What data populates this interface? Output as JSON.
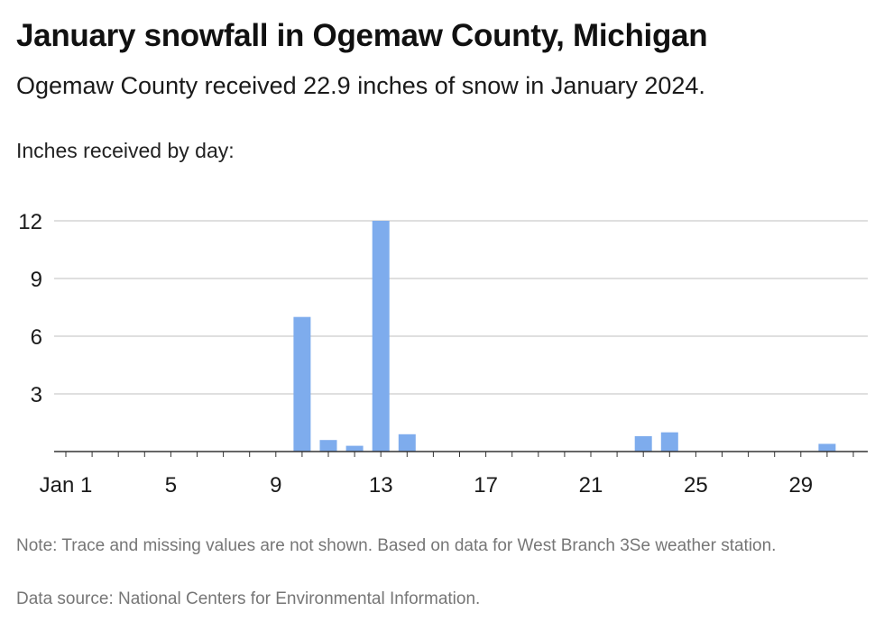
{
  "header": {
    "title": "January snowfall in Ogemaw County, Michigan",
    "subtitle": "Ogemaw County received 22.9 inches of snow in January 2024."
  },
  "footer": {
    "note": "Note: Trace and missing values are not shown. Based on data for West Branch 3Se weather station.",
    "source": "Data source: National Centers for Environmental Information."
  },
  "colors": {
    "bar": "#7eaced",
    "grid": "#bfbfbf",
    "axis": "#333333",
    "tick_text": "#1a1a1a"
  },
  "chart_data": {
    "type": "bar",
    "title": "January snowfall in Ogemaw County, Michigan",
    "subtitle": "Ogemaw County received 22.9 inches of snow in January 2024.",
    "ylabel": "Inches received by day:",
    "xlabel": "",
    "ylim": [
      0,
      12
    ],
    "yticks": [
      3,
      6,
      9,
      12
    ],
    "x_range": [
      1,
      31
    ],
    "xticks": [
      {
        "day": 1,
        "label": "Jan 1"
      },
      {
        "day": 5,
        "label": "5"
      },
      {
        "day": 9,
        "label": "9"
      },
      {
        "day": 13,
        "label": "13"
      },
      {
        "day": 17,
        "label": "17"
      },
      {
        "day": 21,
        "label": "21"
      },
      {
        "day": 25,
        "label": "25"
      },
      {
        "day": 29,
        "label": "29"
      }
    ],
    "grid": true,
    "legend": "none",
    "bars": [
      {
        "day": 10,
        "value": 7.0
      },
      {
        "day": 11,
        "value": 0.6
      },
      {
        "day": 12,
        "value": 0.3
      },
      {
        "day": 13,
        "value": 12.0
      },
      {
        "day": 14,
        "value": 0.9
      },
      {
        "day": 23,
        "value": 0.8
      },
      {
        "day": 24,
        "value": 1.0
      },
      {
        "day": 30,
        "value": 0.4
      }
    ]
  }
}
